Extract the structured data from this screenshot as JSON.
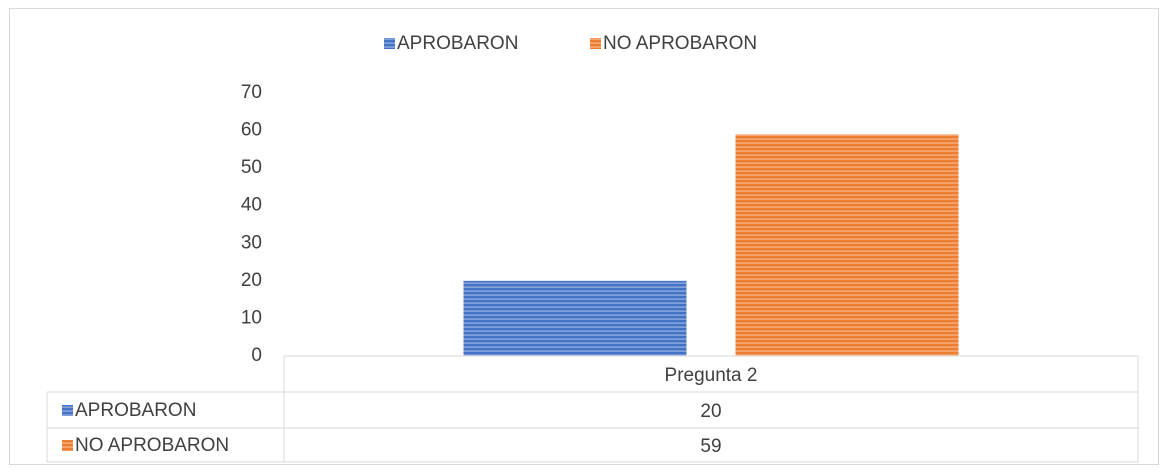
{
  "chart_data": {
    "type": "bar",
    "categories": [
      "Pregunta 2"
    ],
    "series": [
      {
        "name": "APROBARON",
        "color": "#4472c4",
        "values": [
          20
        ]
      },
      {
        "name": "NO APROBARON",
        "color": "#ed7d31",
        "values": [
          59
        ]
      }
    ],
    "ylim": [
      0,
      70
    ],
    "yticks": [
      0,
      10,
      20,
      30,
      40,
      50,
      60,
      70
    ],
    "grid": false,
    "legend": "top",
    "data_table": true
  }
}
